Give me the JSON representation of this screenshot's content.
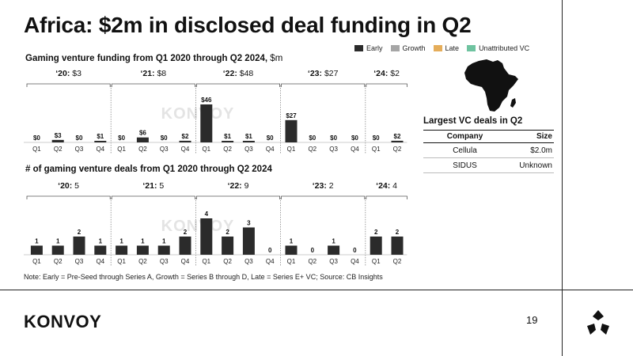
{
  "title": "Africa: $2m in disclosed deal funding in Q2",
  "funding_chart": {
    "title": "Gaming venture funding from Q1 2020 through Q2 2024,",
    "unit": "$m"
  },
  "deals_chart": {
    "title": "# of gaming venture deals from Q1 2020 through Q2 2024"
  },
  "legend": [
    {
      "label": "Early",
      "color": "#2b2b2b"
    },
    {
      "label": "Growth",
      "color": "#a6a6a6"
    },
    {
      "label": "Late",
      "color": "#e5ad5a"
    },
    {
      "label": "Unattributed VC",
      "color": "#6fc3a0"
    }
  ],
  "watermark": "KONVOY",
  "chart_data": [
    {
      "type": "bar",
      "title": "Gaming venture funding from Q1 2020 through Q2 2024, $m",
      "categories": [
        "Q1",
        "Q2",
        "Q3",
        "Q4",
        "Q1",
        "Q2",
        "Q3",
        "Q4",
        "Q1",
        "Q2",
        "Q3",
        "Q4",
        "Q1",
        "Q2",
        "Q3",
        "Q4",
        "Q1",
        "Q2"
      ],
      "values": [
        0,
        3,
        0,
        1,
        0,
        6,
        0,
        2,
        46,
        1,
        1,
        0,
        27,
        0,
        0,
        0,
        0,
        2
      ],
      "data_labels": [
        "$0",
        "$3",
        "$0",
        "$1",
        "$0",
        "$6",
        "$0",
        "$2",
        "$46",
        "$1",
        "$1",
        "$0",
        "$27",
        "$0",
        "$0",
        "$0",
        "$0",
        "$2"
      ],
      "groups": [
        {
          "year": "‘20:",
          "total": "$3",
          "count": 4
        },
        {
          "year": "‘21:",
          "total": "$8",
          "count": 4
        },
        {
          "year": "‘22:",
          "total": "$48",
          "count": 4
        },
        {
          "year": "‘23:",
          "total": "$27",
          "count": 4
        },
        {
          "year": "‘24:",
          "total": "$2",
          "count": 2
        }
      ],
      "series": [
        {
          "name": "Early",
          "values": [
            0,
            3,
            0,
            1,
            0,
            6,
            0,
            2,
            46,
            1,
            1,
            0,
            27,
            0,
            0,
            0,
            0,
            2
          ]
        }
      ],
      "ylim": [
        0,
        46
      ]
    },
    {
      "type": "bar",
      "title": "# of gaming venture deals from Q1 2020 through Q2 2024",
      "categories": [
        "Q1",
        "Q2",
        "Q3",
        "Q4",
        "Q1",
        "Q2",
        "Q3",
        "Q4",
        "Q1",
        "Q2",
        "Q3",
        "Q4",
        "Q1",
        "Q2",
        "Q3",
        "Q4",
        "Q1",
        "Q2"
      ],
      "values": [
        1,
        1,
        2,
        1,
        1,
        1,
        1,
        2,
        4,
        2,
        3,
        0,
        1,
        0,
        1,
        0,
        2,
        2
      ],
      "data_labels": [
        "1",
        "1",
        "2",
        "1",
        "1",
        "1",
        "1",
        "2",
        "4",
        "2",
        "3",
        "0",
        "1",
        "0",
        "1",
        "0",
        "2",
        "2"
      ],
      "groups": [
        {
          "year": "‘20:",
          "total": "5",
          "count": 4
        },
        {
          "year": "‘21:",
          "total": "5",
          "count": 4
        },
        {
          "year": "‘22:",
          "total": "9",
          "count": 4
        },
        {
          "year": "‘23:",
          "total": "2",
          "count": 4
        },
        {
          "year": "‘24:",
          "total": "4",
          "count": 2
        }
      ],
      "series": [
        {
          "name": "Early",
          "values": [
            1,
            1,
            2,
            1,
            1,
            1,
            1,
            2,
            4,
            2,
            3,
            0,
            1,
            0,
            1,
            0,
            2,
            2
          ]
        }
      ],
      "ylim": [
        0,
        4
      ]
    }
  ],
  "deals_table": {
    "title": "Largest VC deals in Q2",
    "headers": [
      "Company",
      "Size"
    ],
    "rows": [
      [
        "Cellula",
        "$2.0m"
      ],
      [
        "SIDUS",
        "Unknown"
      ]
    ]
  },
  "note": "Note: Early = Pre-Seed through Series A, Growth = Series B through D, Late = Series E+ VC; Source: CB Insights",
  "footer": {
    "logo": "KONVOY",
    "page_number": "19"
  }
}
